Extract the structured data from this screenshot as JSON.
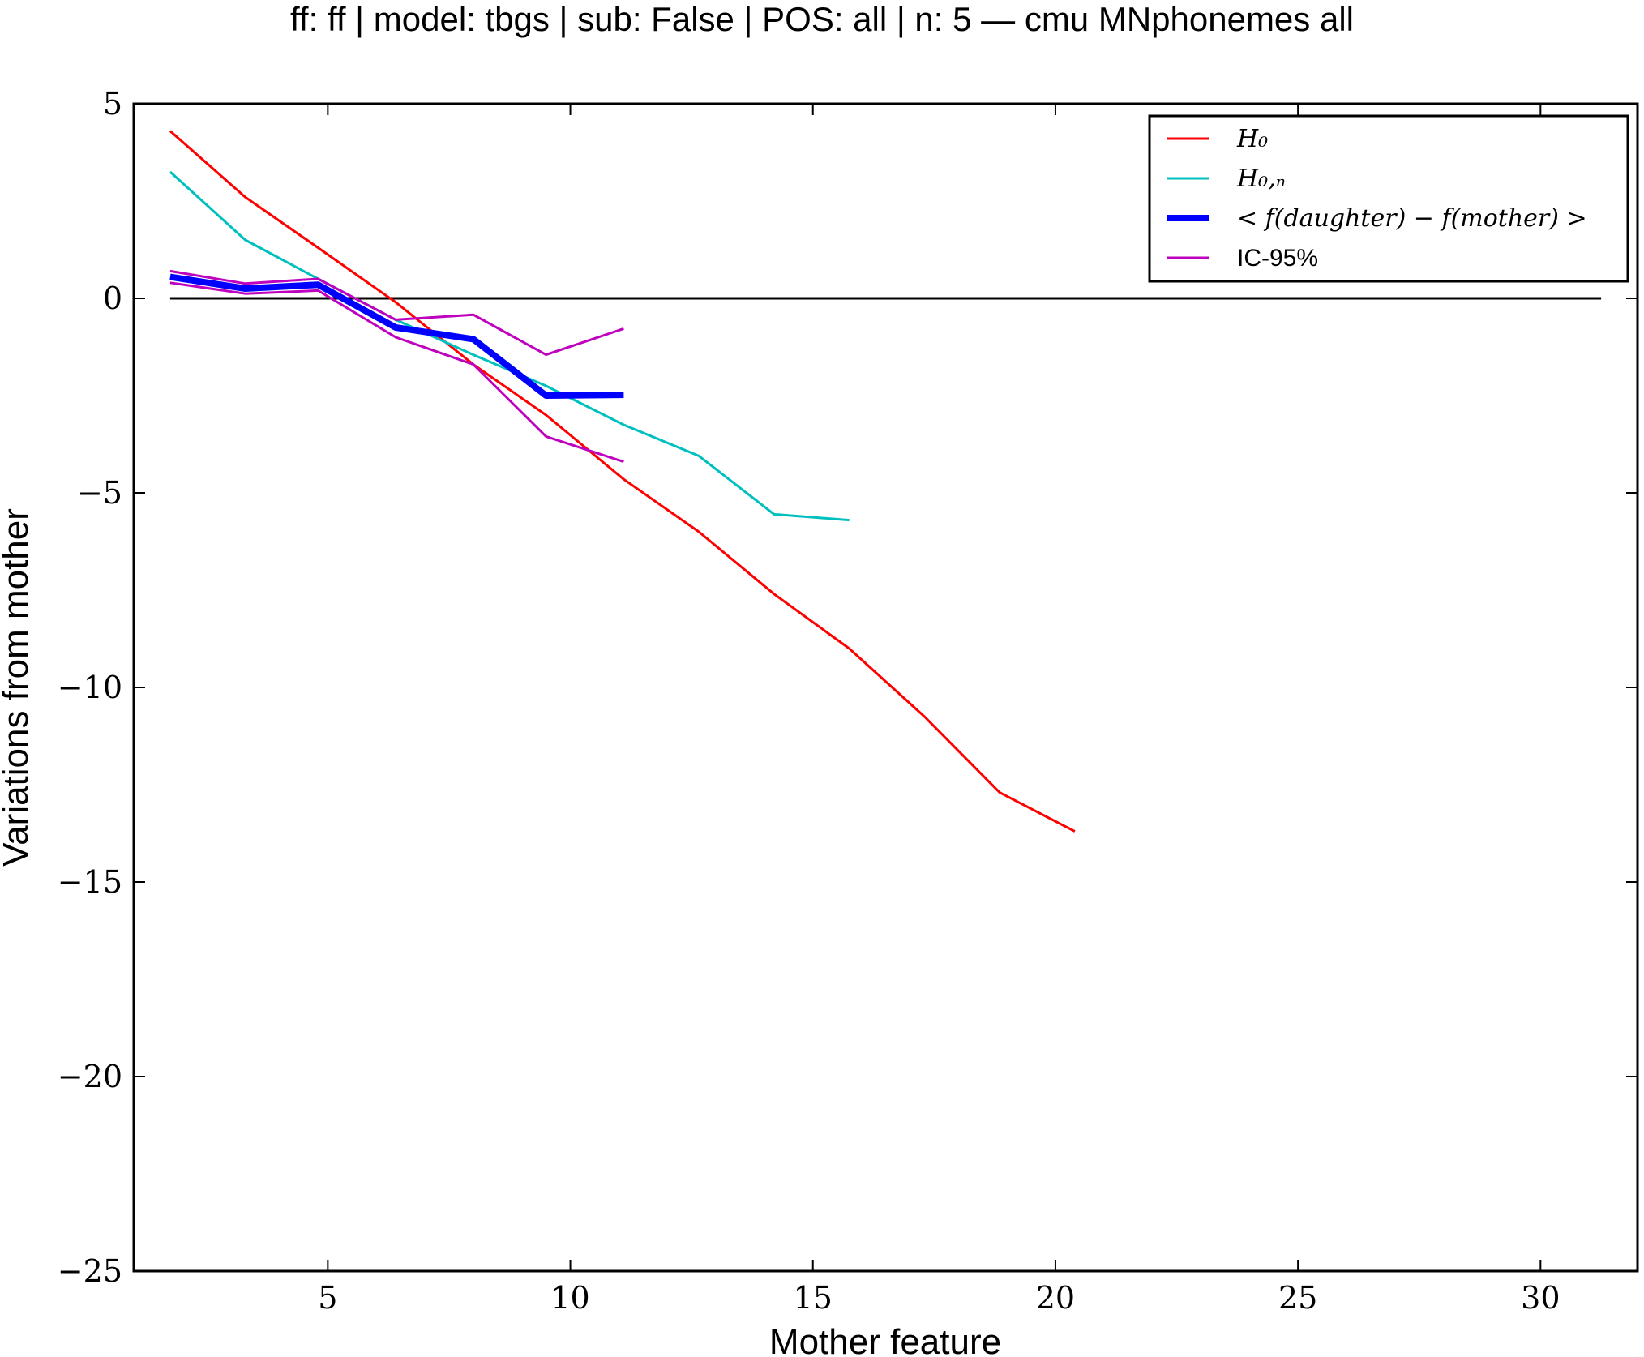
{
  "chart_data": {
    "type": "line",
    "title": "ff: ff | model: tbgs | sub: False | POS: all | n: 5 — cmu MNphonemes all",
    "xlabel": "Mother feature",
    "ylabel": "Variations from mother",
    "xlim": [
      1,
      32
    ],
    "ylim": [
      -25,
      5
    ],
    "xticks": [
      5,
      10,
      15,
      20,
      25,
      30
    ],
    "xtick_labels": [
      "5",
      "10",
      "15",
      "20",
      "25",
      "30"
    ],
    "yticks": [
      5,
      0,
      -5,
      -10,
      -15,
      -20,
      -25
    ],
    "ytick_labels": [
      "5",
      "0",
      "−5",
      "−10",
      "−15",
      "−20",
      "−25"
    ],
    "grid": false,
    "legend_position": "top-right",
    "series": [
      {
        "name": "H0",
        "legend_label": "H₀",
        "color": "#ff0000",
        "width": 3,
        "x": [
          1.75,
          3.3,
          4.8,
          6.4,
          8.0,
          9.5,
          11.1,
          12.65,
          14.2,
          15.75,
          17.3,
          18.85,
          20.4
        ],
        "y": [
          4.3,
          2.6,
          1.3,
          -0.1,
          -1.7,
          -3.0,
          -4.65,
          -6.0,
          -7.6,
          -9.0,
          -10.75,
          -12.7,
          -13.7
        ]
      },
      {
        "name": "H0,n",
        "legend_label": "H₀,ₙ",
        "color": "#00bfbf",
        "width": 3,
        "x": [
          1.75,
          3.3,
          4.8,
          6.4,
          8.0,
          9.5,
          11.1,
          12.65,
          14.2,
          15.75
        ],
        "y": [
          3.25,
          1.5,
          0.5,
          -0.55,
          -1.45,
          -2.25,
          -3.25,
          -4.05,
          -5.55,
          -5.7
        ]
      },
      {
        "name": "< f(daughter) − f(mother) >",
        "legend_label": "< f(daughter) − f(mother) >",
        "color": "#0000ff",
        "width": 8,
        "x": [
          1.75,
          3.3,
          4.8,
          6.4,
          8.0,
          9.5,
          11.1
        ],
        "y": [
          0.55,
          0.25,
          0.35,
          -0.75,
          -1.05,
          -2.5,
          -2.48
        ]
      },
      {
        "name": "IC-95%",
        "legend_label": "IC-95%",
        "color": "#bf00bf",
        "width": 3,
        "x": [
          1.75,
          3.3,
          4.8,
          6.4,
          8.0,
          9.5,
          11.1
        ],
        "y": [
          0.7,
          0.38,
          0.5,
          -0.55,
          -0.42,
          -1.45,
          -0.78
        ]
      },
      {
        "name": "IC-95% lower",
        "legend_label": "",
        "color": "#bf00bf",
        "width": 3,
        "x": [
          1.75,
          3.3,
          4.8,
          6.4,
          8.0,
          9.5,
          11.1
        ],
        "y": [
          0.4,
          0.12,
          0.2,
          -1.0,
          -1.7,
          -3.55,
          -4.2
        ]
      }
    ],
    "reference_line": {
      "y": 0,
      "x": [
        1.75,
        31.25
      ],
      "color": "#000000"
    }
  }
}
